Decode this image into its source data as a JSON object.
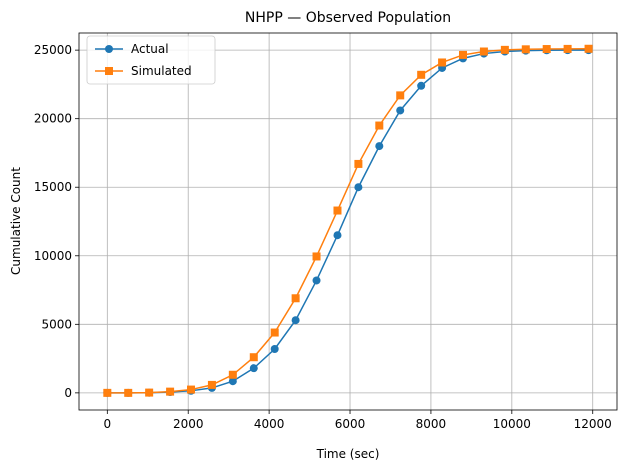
{
  "chart_data": {
    "type": "line",
    "title": "NHPP — Observed Population",
    "xlabel": "Time (sec)",
    "ylabel": "Cumulative Count",
    "xlim": [
      -700,
      12600
    ],
    "ylim": [
      -1250,
      26250
    ],
    "xticks": [
      0,
      2000,
      4000,
      6000,
      8000,
      10000,
      12000
    ],
    "xtick_labels": [
      "0",
      "2000",
      "4000",
      "6000",
      "8000",
      "10000",
      "12000"
    ],
    "yticks": [
      0,
      5000,
      10000,
      15000,
      20000,
      25000
    ],
    "ytick_labels": [
      "0",
      "5000",
      "10000",
      "15000",
      "20000",
      "25000"
    ],
    "grid": true,
    "legend_position": "upper-left",
    "x": [
      0,
      517,
      1034,
      1552,
      2069,
      2586,
      3103,
      3621,
      4138,
      4655,
      5172,
      5690,
      6207,
      6724,
      7241,
      7759,
      8276,
      8793,
      9310,
      9828,
      10345,
      10862,
      11379,
      11897
    ],
    "series": [
      {
        "name": "Actual",
        "color": "#1f77b4",
        "marker": "circle",
        "values": [
          0,
          0,
          10,
          60,
          150,
          360,
          850,
          1800,
          3200,
          5300,
          8200,
          11500,
          15000,
          18000,
          20600,
          22400,
          23700,
          24400,
          24750,
          24900,
          24960,
          24990,
          25000,
          25000
        ]
      },
      {
        "name": "Simulated",
        "color": "#ff7f0e",
        "marker": "square",
        "values": [
          0,
          0,
          20,
          90,
          240,
          580,
          1320,
          2600,
          4400,
          6900,
          9950,
          13300,
          16700,
          19500,
          21700,
          23200,
          24100,
          24650,
          24900,
          25020,
          25060,
          25080,
          25090,
          25100
        ]
      }
    ]
  }
}
